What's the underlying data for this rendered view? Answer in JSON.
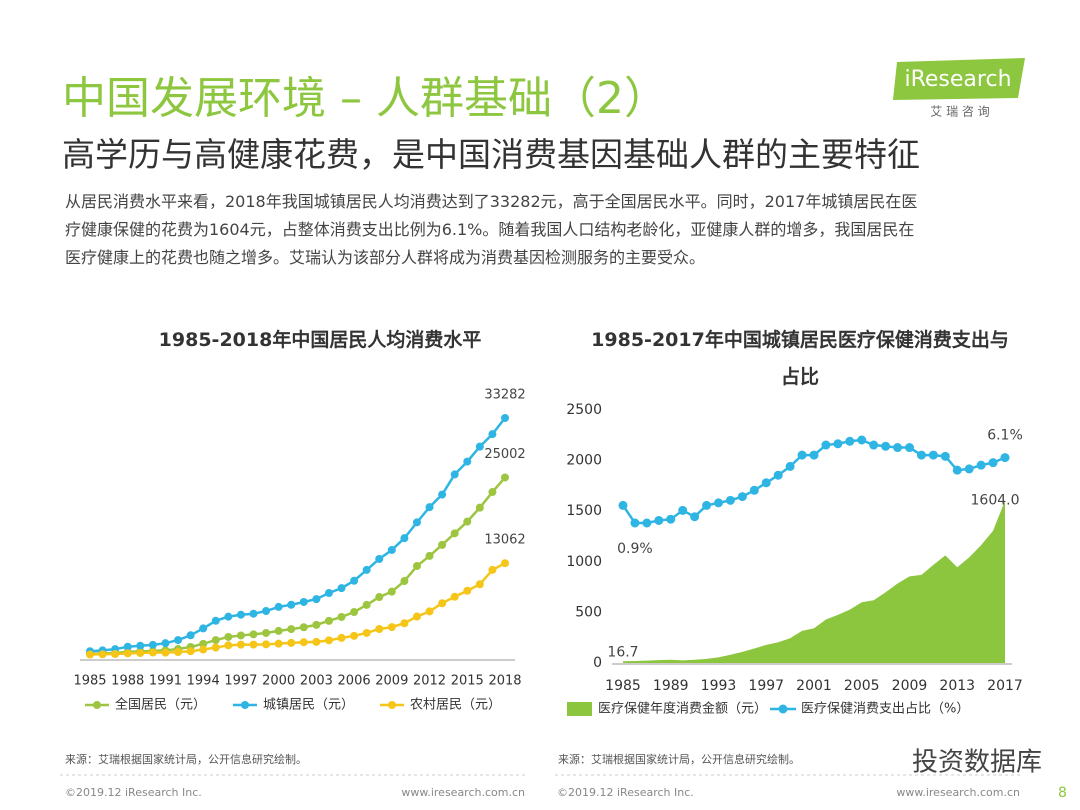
{
  "header": {
    "title": "中国发展环境 – 人群基础（2）",
    "subtitle": "高学历与高健康花费，是中国消费基因基础人群的主要特征",
    "logo": {
      "brand": "iResearch",
      "sub": "艾 瑞 咨 询"
    }
  },
  "body": {
    "lines": [
      "从居民消费水平来看，2018年我国城镇居民人均消费达到了33282元，高于全国居民水平。同时，2017年城镇居民在医",
      "疗健康保健的花费为1604元，占整体消费支出比例为6.1%。随着我国人口结构老龄化，亚健康人群的增多，我国居民在",
      "医疗健康上的花费也随之增多。艾瑞认为该部分人群将成为消费基因检测服务的主要受众。"
    ]
  },
  "chart_data": [
    {
      "type": "line",
      "title": "1985-2018年中国居民人均消费水平",
      "categories": [
        "1985",
        null,
        null,
        "1988",
        null,
        null,
        "1991",
        null,
        null,
        "1994",
        null,
        null,
        "1997",
        null,
        null,
        "2000",
        null,
        null,
        "2003",
        null,
        null,
        "2006",
        null,
        null,
        "2009",
        null,
        null,
        "2012",
        null,
        null,
        "2015",
        null,
        null,
        "2018"
      ],
      "series": [
        {
          "name": "全国居民（元）",
          "color": "#9dc540",
          "values": [
            446,
            497,
            565,
            714,
            788,
            833,
            932,
            1116,
            1393,
            1833,
            2355,
            2789,
            3002,
            3159,
            3346,
            3632,
            3887,
            4144,
            4475,
            5032,
            5573,
            6263,
            7255,
            8349,
            9098,
            10575,
            12668,
            14074,
            15615,
            17220,
            18857,
            20801,
            22969,
            25002
          ]
        },
        {
          "name": "城镇居民（元）",
          "color": "#2fb5e3",
          "values": [
            802,
            920,
            1089,
            1431,
            1568,
            1686,
            1925,
            2356,
            3027,
            3979,
            5044,
            5620,
            5888,
            6029,
            6405,
            6972,
            7272,
            7662,
            8060,
            8912,
            9593,
            10618,
            12130,
            13653,
            14904,
            16546,
            18750,
            20869,
            22620,
            25424,
            27210,
            29295,
            31032,
            33282
          ]
        },
        {
          "name": "农村居民（元）",
          "color": "#f5c518",
          "values": [
            347,
            376,
            417,
            508,
            553,
            627,
            602,
            688,
            805,
            1038,
            1313,
            1626,
            1722,
            1730,
            1766,
            1860,
            1969,
            2062,
            2103,
            2319,
            2657,
            2950,
            3347,
            3901,
            4163,
            4700,
            5633,
            6350,
            7485,
            8383,
            9223,
            10130,
            12124,
            13062
          ]
        }
      ]
    },
    {
      "type": "area",
      "title": "1985-2017年中国城镇居民医疗保健消费支出与占比",
      "categories": [
        "1985",
        null,
        null,
        null,
        "1989",
        null,
        null,
        null,
        "1993",
        null,
        null,
        null,
        "1997",
        null,
        null,
        null,
        "2001",
        null,
        null,
        null,
        "2005",
        null,
        null,
        null,
        "2009",
        null,
        null,
        null,
        "2013",
        null,
        null,
        null,
        "2017"
      ],
      "ylim": [
        0,
        2500
      ],
      "yticks": [
        0,
        500,
        1000,
        1500,
        2000,
        2500
      ],
      "series": [
        {
          "name": "医疗保健年度消费金额（元）",
          "color": "#8cc63f",
          "type": "area",
          "values": [
            16.7,
            20,
            24,
            29,
            32,
            26,
            32,
            41,
            56,
            82,
            110,
            143,
            179,
            205,
            245,
            318,
            343,
            430,
            476,
            528,
            600,
            620,
            699,
            786,
            856,
            871,
            969,
            1064,
            946,
            1044,
            1165,
            1307,
            1604
          ],
          "value_labels": [
            "16.7",
            null,
            null,
            null,
            null,
            null,
            null,
            null,
            null,
            null,
            null,
            null,
            null,
            null,
            null,
            null,
            null,
            null,
            null,
            null,
            null,
            null,
            null,
            null,
            null,
            null,
            null,
            null,
            null,
            null,
            null,
            null,
            "1604.0"
          ]
        },
        {
          "name": "医疗保健消费支出占比（%）",
          "color": "#2fb5e3",
          "type": "line",
          "axis": "y2",
          "values": [
            2.3,
            0.9,
            0.9,
            1.1,
            1.2,
            1.9,
            1.4,
            2.3,
            2.5,
            2.7,
            3.0,
            3.5,
            4.1,
            4.7,
            5.4,
            6.3,
            6.3,
            7.1,
            7.2,
            7.4,
            7.5,
            7.1,
            7.0,
            6.9,
            6.9,
            6.3,
            6.3,
            6.2,
            5.1,
            5.2,
            5.5,
            5.7,
            6.1
          ],
          "value_labels": [
            null,
            "0.9%",
            null,
            null,
            null,
            null,
            null,
            null,
            null,
            null,
            null,
            null,
            null,
            null,
            null,
            null,
            null,
            null,
            null,
            null,
            null,
            null,
            null,
            null,
            null,
            null,
            null,
            null,
            null,
            null,
            null,
            null,
            "6.1%"
          ]
        }
      ]
    }
  ],
  "footer": {
    "source_left": "来源：艾瑞根据国家统计局，公开信息研究绘制。",
    "source_right": "来源：艾瑞根据国家统计局，公开信息研究绘制。",
    "copyright_left": "©2019.12 iResearch Inc.",
    "url_left": "www.iresearch.com.cn",
    "copyright_right": "©2019.12 iResearch Inc.",
    "url_right": "www.iresearch.com.cn",
    "page": "8",
    "watermark": "投资数据库"
  }
}
